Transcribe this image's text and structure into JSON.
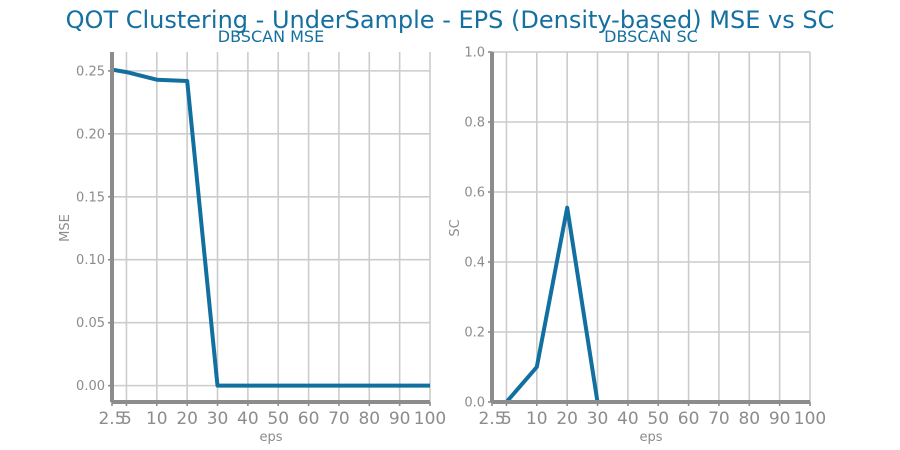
{
  "figure": {
    "suptitle": "QOT Clustering - UnderSample - EPS (Density-based) MSE vs SC"
  },
  "colors": {
    "series": "#1170a0",
    "grid": "#cccccc",
    "axis": "#8c8c8c",
    "title": "#1570a0"
  },
  "chart_data": [
    {
      "type": "line",
      "title": "DBSCAN MSE",
      "xlabel": "eps",
      "ylabel": "MSE",
      "grid": true,
      "x_ticks": [
        "2.5",
        "5",
        "10",
        "20",
        "30",
        "40",
        "50",
        "60",
        "70",
        "80",
        "90",
        "100"
      ],
      "y_ticks": [
        "0.00",
        "0.05",
        "0.10",
        "0.15",
        "0.20",
        "0.25"
      ],
      "xlim": [
        2.5,
        100
      ],
      "ylim": [
        -0.013,
        0.265
      ],
      "series": [
        {
          "x": [
            2.5,
            5,
            10,
            20,
            30,
            40,
            50,
            60,
            70,
            80,
            90,
            100
          ],
          "values": [
            0.251,
            0.249,
            0.243,
            0.242,
            0.0,
            0.0,
            0.0,
            0.0,
            0.0,
            0.0,
            0.0,
            0.0
          ]
        }
      ]
    },
    {
      "type": "line",
      "title": "DBSCAN SC",
      "xlabel": "eps",
      "ylabel": "SC",
      "grid": true,
      "x_ticks": [
        "2.5",
        "5",
        "10",
        "20",
        "30",
        "40",
        "50",
        "60",
        "70",
        "80",
        "90",
        "100"
      ],
      "y_ticks": [
        "0.0",
        "0.2",
        "0.4",
        "0.6",
        "0.8",
        "1.0"
      ],
      "xlim": [
        2.5,
        100
      ],
      "ylim": [
        0,
        1
      ],
      "series": [
        {
          "x": [
            2.5,
            5,
            10,
            20,
            30,
            40,
            50,
            60,
            70,
            80,
            90,
            100
          ],
          "values": [
            -0.08,
            0.0,
            0.1,
            0.555,
            0.0,
            0.0,
            0.0,
            0.0,
            0.0,
            0.0,
            0.0,
            0.0
          ]
        }
      ]
    }
  ]
}
